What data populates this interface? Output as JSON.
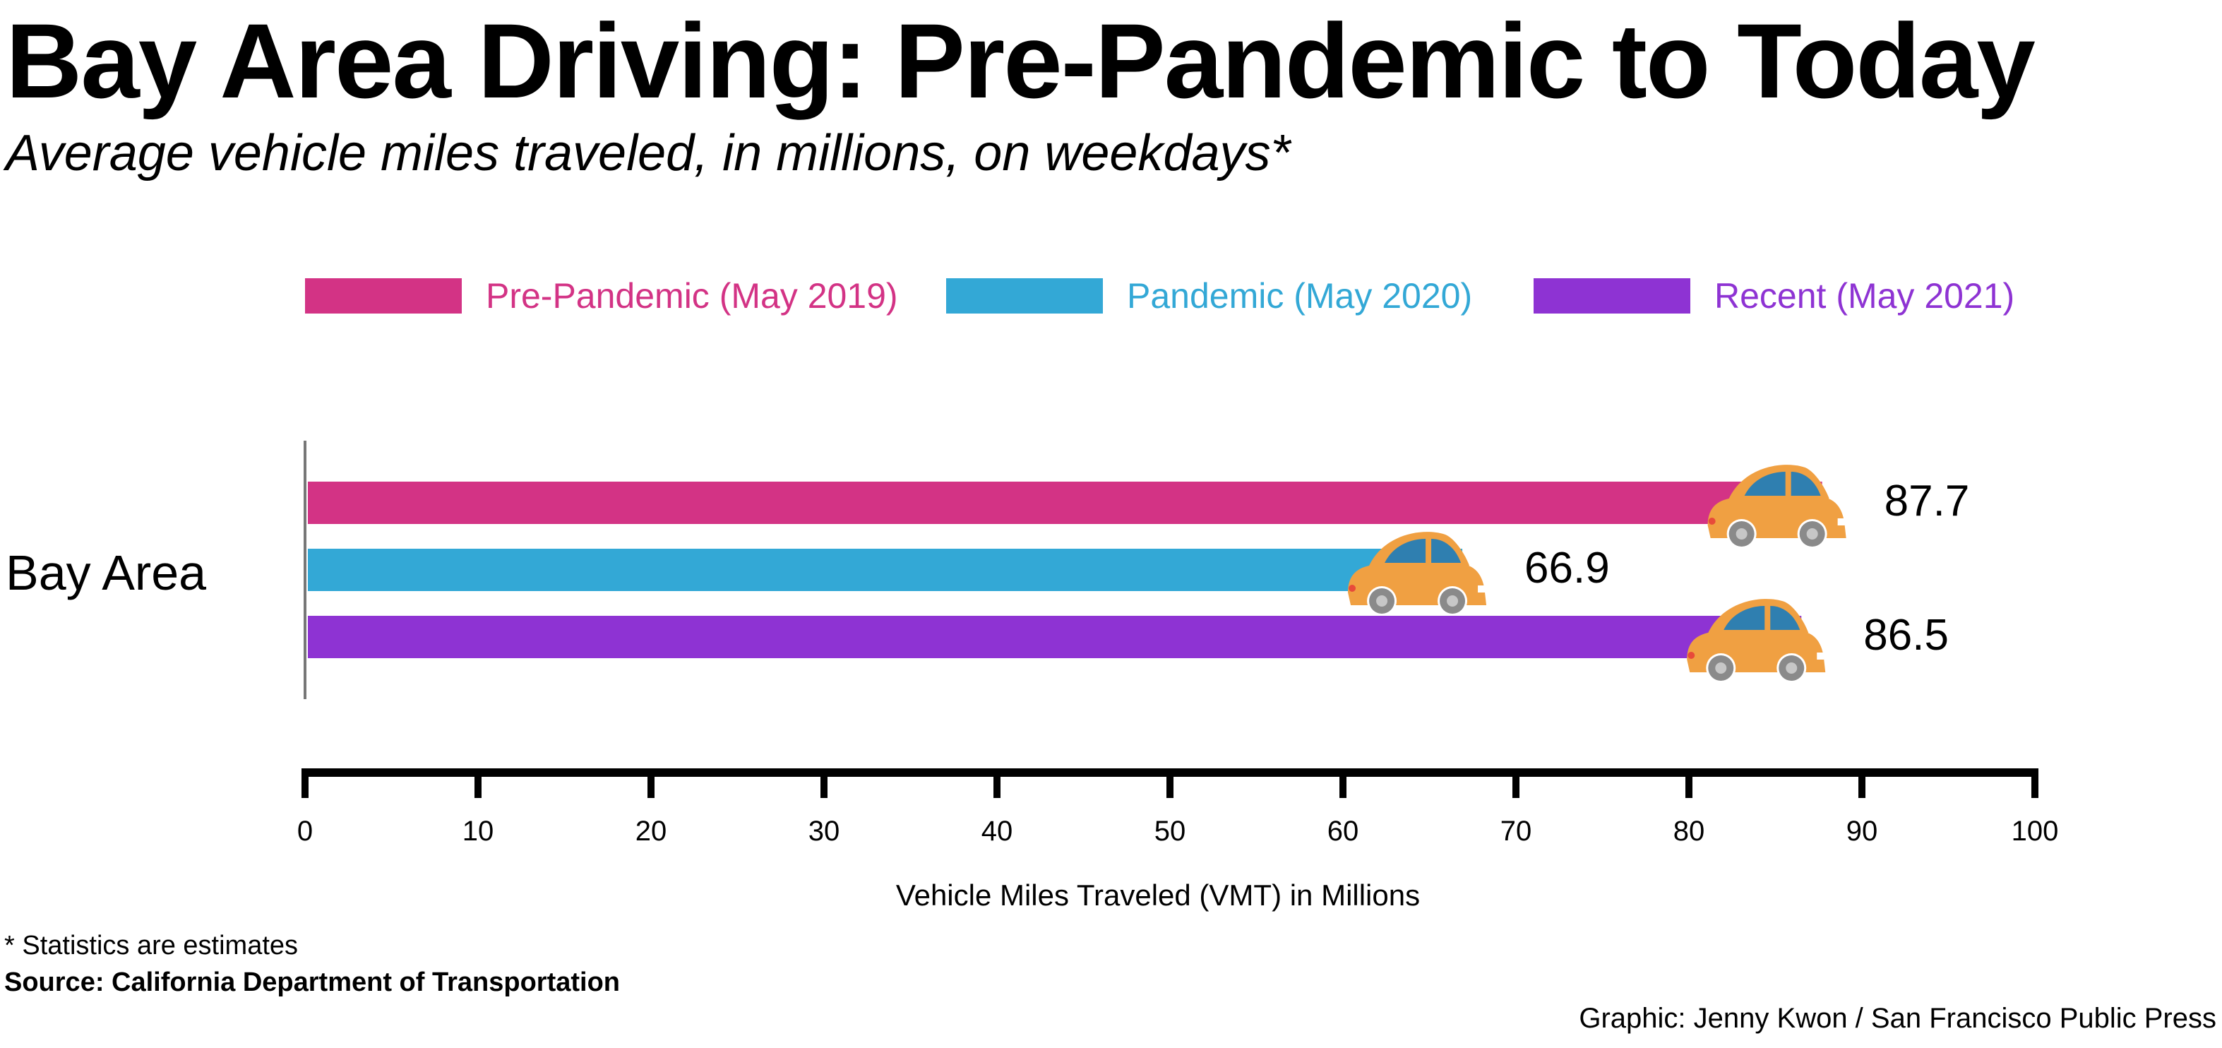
{
  "title": "Bay Area Driving: Pre-Pandemic to Today",
  "subtitle": "Average vehicle miles traveled, in millions, on weekdays*",
  "footnote": "* Statistics are estimates",
  "source": "Source: California Department of Transportation",
  "credit": "Graphic: Jenny Kwon / San Francisco Public Press",
  "colors": {
    "pre_pandemic": "#d33385",
    "pandemic": "#33a8d6",
    "recent": "#8e33d3",
    "car_body": "#f0a042",
    "car_window": "#2f7fb0",
    "axis": "#000000"
  },
  "chart_data": {
    "type": "bar",
    "orientation": "horizontal",
    "categories": [
      "Bay Area"
    ],
    "series": [
      {
        "name": "Pre-Pandemic (May 2019)",
        "values": [
          87.7
        ],
        "color": "#d33385"
      },
      {
        "name": "Pandemic (May 2020)",
        "values": [
          66.9
        ],
        "color": "#33a8d6"
      },
      {
        "name": "Recent (May 2021)",
        "values": [
          86.5
        ],
        "color": "#8e33d3"
      }
    ],
    "data_labels": [
      "87.7",
      "66.9",
      "86.5"
    ],
    "xlabel": "Vehicle Miles Traveled (VMT) in Millions",
    "xlim": [
      0,
      100
    ],
    "xticks": [
      0,
      10,
      20,
      30,
      40,
      50,
      60,
      70,
      80,
      90,
      100
    ],
    "xtick_labels": [
      "0",
      "10",
      "20",
      "30",
      "40",
      "50",
      "60",
      "70",
      "80",
      "90",
      "100"
    ],
    "legend_position": "top",
    "grid": false,
    "marker_icon": "car-icon"
  }
}
